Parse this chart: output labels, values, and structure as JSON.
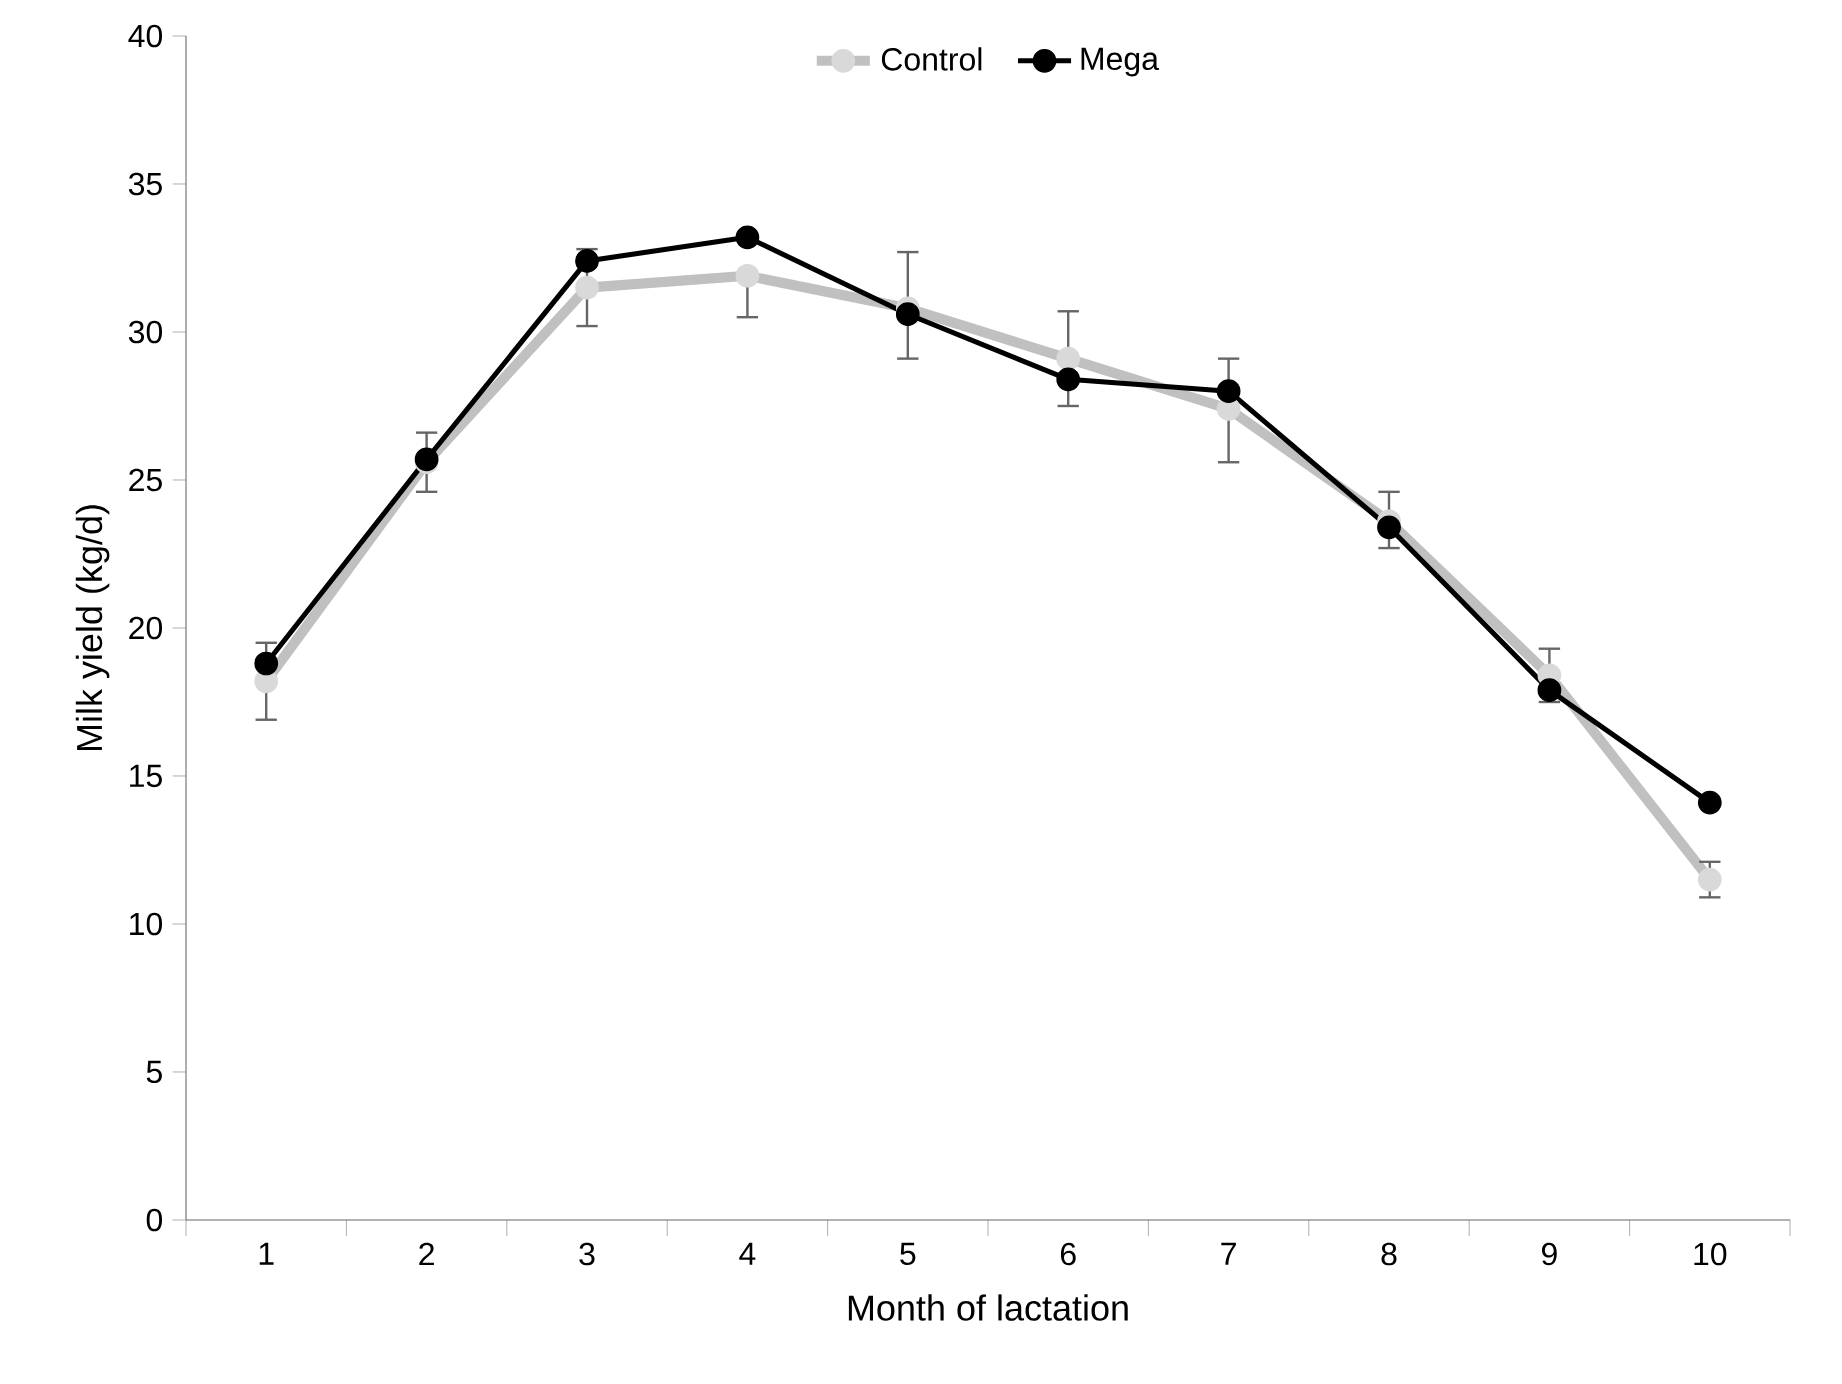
{
  "chart_data": {
    "type": "line",
    "xlabel": "Month of lactation",
    "ylabel": "Milk yield (kg/d)",
    "categories": [
      "1",
      "2",
      "3",
      "4",
      "5",
      "6",
      "7",
      "8",
      "9",
      "10"
    ],
    "ylim": [
      0,
      40
    ],
    "yticks": [
      0,
      5,
      10,
      15,
      20,
      25,
      30,
      35,
      40
    ],
    "grid": false,
    "legend": "top",
    "marker": "circle",
    "line_style": "solid",
    "series": [
      {
        "name": "Control",
        "color": "#c0c0c0",
        "values": [
          18.2,
          25.6,
          31.5,
          31.9,
          30.8,
          29.1,
          27.4,
          23.6,
          18.4,
          11.5
        ],
        "errors": [
          [
            16.9,
            19.5
          ],
          [
            24.6,
            26.6
          ],
          [
            30.2,
            32.8
          ],
          [
            30.5,
            31.9
          ],
          [
            29.1,
            32.7
          ],
          [
            27.5,
            30.7
          ],
          [
            25.6,
            29.1
          ],
          [
            22.7,
            24.6
          ],
          [
            17.5,
            19.3
          ],
          [
            10.9,
            12.1
          ]
        ]
      },
      {
        "name": "Mega",
        "color": "#000000",
        "values": [
          18.8,
          25.7,
          32.4,
          33.2,
          30.6,
          28.4,
          28.0,
          23.4,
          17.9,
          14.1
        ]
      }
    ]
  }
}
